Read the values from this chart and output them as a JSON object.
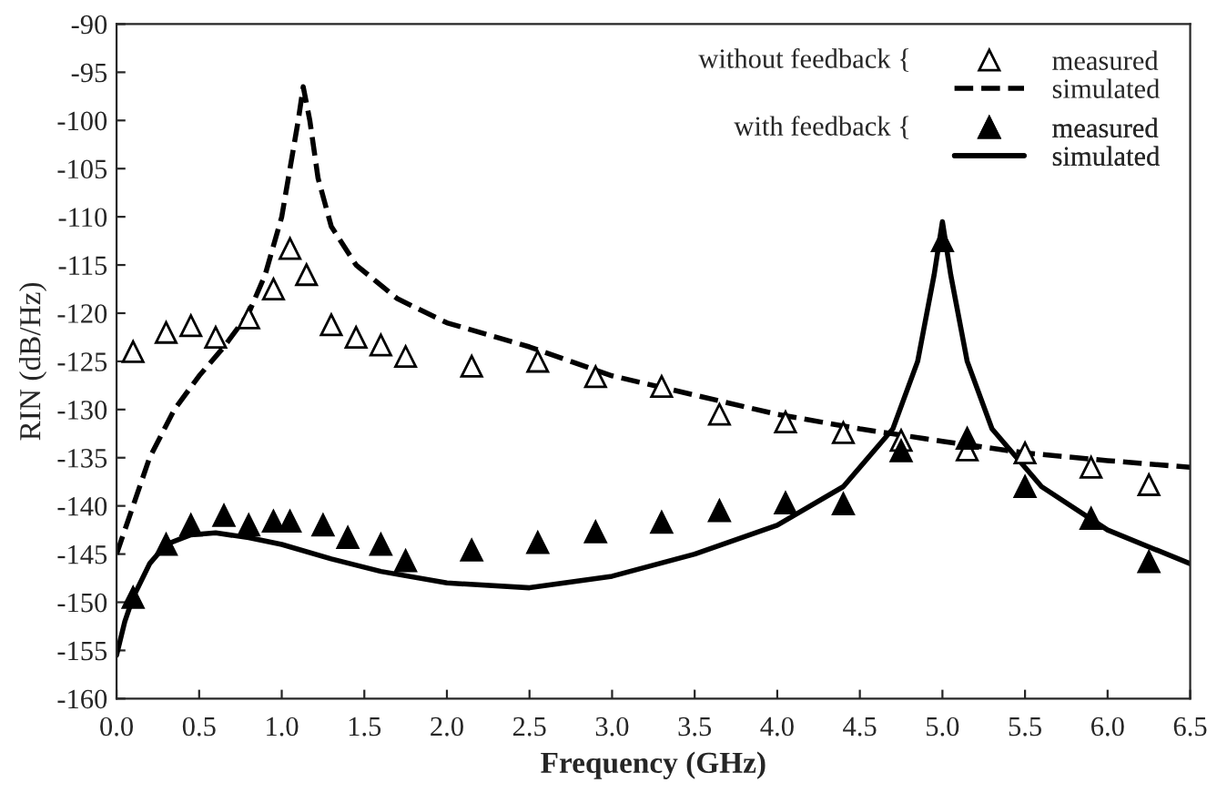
{
  "chart_data": {
    "type": "line",
    "xlabel": "Frequency (GHz)",
    "ylabel": "RIN (dB/Hz)",
    "xlim": [
      0,
      6.5
    ],
    "xticks": [
      {
        "value": 0,
        "label": "0.0"
      },
      {
        "value": 0.5,
        "label": "0.5"
      },
      {
        "value": 1,
        "label": "1.0"
      },
      {
        "value": 1.5,
        "label": "1.5"
      },
      {
        "value": 2,
        "label": "2.0"
      },
      {
        "value": 2.5,
        "label": "2.5"
      },
      {
        "value": 3,
        "label": "3.0"
      },
      {
        "value": 3.5,
        "label": "3.5"
      },
      {
        "value": 4,
        "label": "4.0"
      },
      {
        "value": 4.5,
        "label": "4.5"
      },
      {
        "value": 5,
        "label": "5.0"
      },
      {
        "value": 5.5,
        "label": "5.5"
      },
      {
        "value": 6,
        "label": "6.0"
      },
      {
        "value": 6.5,
        "label": "6.5"
      }
    ],
    "ylim": [
      -160,
      -90
    ],
    "yticks": [
      -160,
      -155,
      -150,
      -145,
      -140,
      -135,
      -130,
      -125,
      -120,
      -115,
      -110,
      -105,
      -100,
      -95,
      -90
    ],
    "grid": false,
    "legend": "top right",
    "annotations": [
      "without feedback {",
      "with feedback {"
    ],
    "series": [
      {
        "name": "measured",
        "type": "scatter",
        "marker": "triangle",
        "color": "#ffffff",
        "x": [
          0.1,
          0.3,
          0.45,
          0.6,
          0.8,
          0.95,
          1.05,
          1.15,
          1.3,
          1.45,
          1.6,
          1.75,
          2.15,
          2.55,
          2.9,
          3.3,
          3.65,
          4.05,
          4.4,
          4.75,
          5.15,
          5.5,
          5.9,
          6.25
        ],
        "values": [
          -124,
          -122,
          -121.3,
          -122.5,
          -120.5,
          -117.5,
          -113.3,
          -116,
          -121.2,
          -122.5,
          -123.3,
          -124.5,
          -125.5,
          -125,
          -126.6,
          -127.6,
          -130.5,
          -131.3,
          -132.4,
          -133.2,
          -134.2,
          -134.5,
          -136,
          -137.8
        ]
      },
      {
        "name": "simulated",
        "line_style": "dashed",
        "color": "#000000",
        "x": [
          0,
          0.1,
          0.2,
          0.35,
          0.5,
          0.65,
          0.8,
          0.9,
          1.0,
          1.05,
          1.1,
          1.13,
          1.17,
          1.22,
          1.3,
          1.45,
          1.7,
          2.0,
          2.5,
          3.0,
          3.5,
          4.0,
          4.5,
          5.0,
          5.5,
          6.0,
          6.5
        ],
        "values": [
          -145,
          -140,
          -135,
          -130,
          -126.5,
          -123.5,
          -120,
          -116,
          -110,
          -105,
          -100,
          -96.5,
          -100,
          -106,
          -111,
          -115,
          -118.5,
          -121,
          -123.5,
          -126.5,
          -128.5,
          -130.5,
          -132,
          -133.3,
          -134.5,
          -135.3,
          -136
        ]
      },
      {
        "name": "measured",
        "type": "scatter",
        "marker": "triangle",
        "color": "#000000",
        "x": [
          0.1,
          0.3,
          0.45,
          0.65,
          0.8,
          0.95,
          1.05,
          1.25,
          1.4,
          1.6,
          1.75,
          2.15,
          2.55,
          2.9,
          3.3,
          3.65,
          4.05,
          4.4,
          4.75,
          5.0,
          5.15,
          5.5,
          5.9,
          6.25
        ],
        "values": [
          -149.5,
          -144,
          -142,
          -141,
          -142,
          -141.6,
          -141.6,
          -142,
          -143.3,
          -144,
          -145.7,
          -144.6,
          -143.8,
          -142.7,
          -141.7,
          -140.5,
          -139.7,
          -139.8,
          -134.3,
          -112.5,
          -133,
          -138,
          -141.3,
          -145.8
        ]
      },
      {
        "name": "simulated",
        "line_style": "solid",
        "color": "#000000",
        "x": [
          0,
          0.05,
          0.1,
          0.2,
          0.3,
          0.45,
          0.6,
          0.8,
          1.0,
          1.3,
          1.6,
          2.0,
          2.5,
          3.0,
          3.5,
          4.0,
          4.4,
          4.7,
          4.85,
          4.95,
          5.0,
          5.05,
          5.15,
          5.3,
          5.6,
          6.0,
          6.5
        ],
        "values": [
          -155.5,
          -152,
          -149.5,
          -146,
          -144,
          -143,
          -142.8,
          -143.3,
          -144,
          -145.5,
          -146.8,
          -148,
          -148.5,
          -147.3,
          -145,
          -142,
          -138,
          -132,
          -125,
          -116,
          -110.5,
          -116,
          -125,
          -132,
          -138,
          -142.5,
          -146
        ]
      }
    ]
  }
}
